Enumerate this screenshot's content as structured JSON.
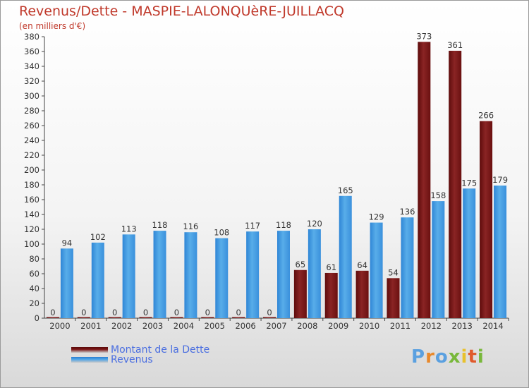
{
  "header": {
    "title": "Revenus/Dette - MASPIE-LALONQUèRE-JUILLACQ",
    "subtitle": "(en milliers d'€)"
  },
  "legend": [
    {
      "label": "Montant de la Dette",
      "color": "#7a1414"
    },
    {
      "label": "Revenus",
      "color": "#3f97e0"
    }
  ],
  "logo": {
    "text": "Proxiti"
  },
  "chart_data": {
    "type": "bar",
    "title": "Revenus/Dette - MASPIE-LALONQUèRE-JUILLACQ",
    "ylabel": "(en milliers d'€)",
    "xlabel": "",
    "categories": [
      "2000",
      "2001",
      "2002",
      "2003",
      "2004",
      "2005",
      "2006",
      "2007",
      "2008",
      "2009",
      "2010",
      "2011",
      "2012",
      "2013",
      "2014"
    ],
    "series": [
      {
        "name": "Montant de la Dette",
        "color": "#7a1414",
        "values": [
          0,
          0,
          0,
          0,
          0,
          0,
          0,
          0,
          65,
          61,
          64,
          54,
          373,
          361,
          266
        ]
      },
      {
        "name": "Revenus",
        "color": "#3f97e0",
        "values": [
          94,
          102,
          113,
          118,
          116,
          108,
          117,
          118,
          120,
          165,
          129,
          136,
          158,
          175,
          179
        ]
      }
    ],
    "ylim": [
      0,
      380
    ],
    "yticks": [
      0,
      20,
      40,
      60,
      80,
      100,
      120,
      140,
      160,
      180,
      200,
      220,
      240,
      260,
      280,
      300,
      320,
      340,
      360,
      380
    ],
    "grid": false,
    "legend_position": "bottom-left"
  }
}
